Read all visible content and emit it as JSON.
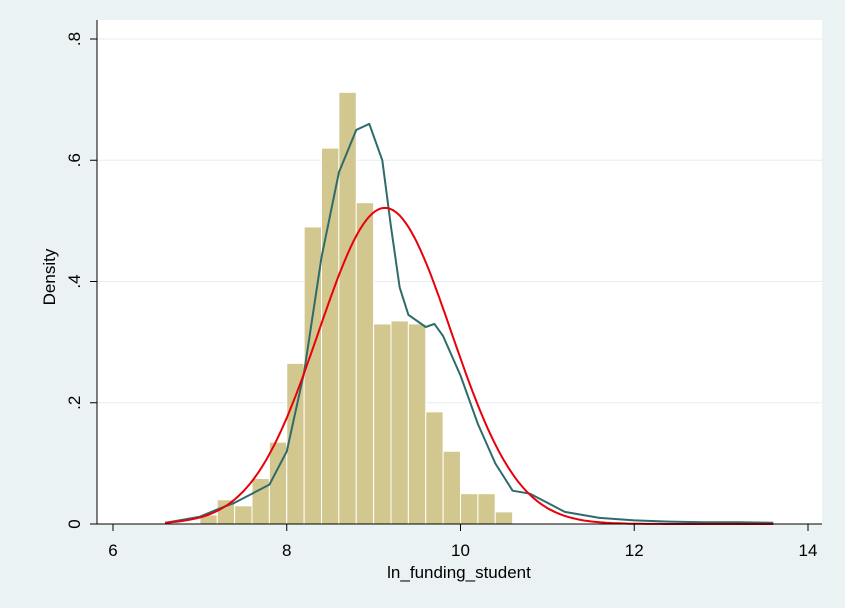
{
  "chart_data": {
    "type": "bar",
    "title": "",
    "xlabel": "ln_funding_student",
    "ylabel": "Density",
    "xlim": [
      6,
      14
    ],
    "ylim": [
      0,
      0.8
    ],
    "xticks": [
      6,
      8,
      10,
      12,
      14
    ],
    "xtick_labels": [
      "6",
      "8",
      "10",
      "12",
      "14"
    ],
    "yticks": [
      0,
      0.2,
      0.4,
      0.6,
      0.8
    ],
    "ytick_labels": [
      "0",
      ".2",
      ".4",
      ".6",
      ".8"
    ],
    "grid": true,
    "legend": "none",
    "bin_width": 0.2,
    "bins": [
      {
        "x0": 7.0,
        "density": 0.015
      },
      {
        "x0": 7.2,
        "density": 0.04
      },
      {
        "x0": 7.4,
        "density": 0.03
      },
      {
        "x0": 7.6,
        "density": 0.075
      },
      {
        "x0": 7.8,
        "density": 0.135
      },
      {
        "x0": 8.0,
        "density": 0.265
      },
      {
        "x0": 8.2,
        "density": 0.49
      },
      {
        "x0": 8.4,
        "density": 0.62
      },
      {
        "x0": 8.6,
        "density": 0.712
      },
      {
        "x0": 8.8,
        "density": 0.53
      },
      {
        "x0": 9.0,
        "density": 0.33
      },
      {
        "x0": 9.2,
        "density": 0.335
      },
      {
        "x0": 9.4,
        "density": 0.33
      },
      {
        "x0": 9.6,
        "density": 0.185
      },
      {
        "x0": 9.8,
        "density": 0.12
      },
      {
        "x0": 10.0,
        "density": 0.05
      },
      {
        "x0": 10.2,
        "density": 0.05
      },
      {
        "x0": 10.4,
        "density": 0.02
      }
    ],
    "series": [
      {
        "kind": "kernel-density",
        "color": "#2e6b6b",
        "x": [
          6.6,
          7.0,
          7.2,
          7.4,
          7.6,
          7.8,
          8.0,
          8.2,
          8.4,
          8.6,
          8.8,
          8.95,
          9.1,
          9.2,
          9.3,
          9.4,
          9.6,
          9.7,
          9.8,
          10.0,
          10.2,
          10.4,
          10.6,
          10.8,
          11.0,
          11.2,
          11.4,
          11.6,
          11.8,
          12.0,
          12.4,
          12.8,
          13.2,
          13.6
        ],
        "y": [
          0.002,
          0.012,
          0.024,
          0.035,
          0.05,
          0.065,
          0.12,
          0.25,
          0.44,
          0.58,
          0.65,
          0.66,
          0.6,
          0.49,
          0.39,
          0.345,
          0.325,
          0.33,
          0.31,
          0.245,
          0.165,
          0.1,
          0.055,
          0.05,
          0.035,
          0.02,
          0.015,
          0.01,
          0.008,
          0.006,
          0.004,
          0.003,
          0.003,
          0.002
        ]
      },
      {
        "kind": "normal-density",
        "color": "#e8000b",
        "mean": 9.13,
        "sd": 0.765,
        "x_range": [
          6.6,
          13.6
        ]
      }
    ],
    "colors": {
      "background": "#eaf2f3",
      "plot_background": "#ffffff",
      "bar_fill": "#d2c78e",
      "bar_edge": "#ffffff",
      "grid": "#e6eef0"
    }
  }
}
